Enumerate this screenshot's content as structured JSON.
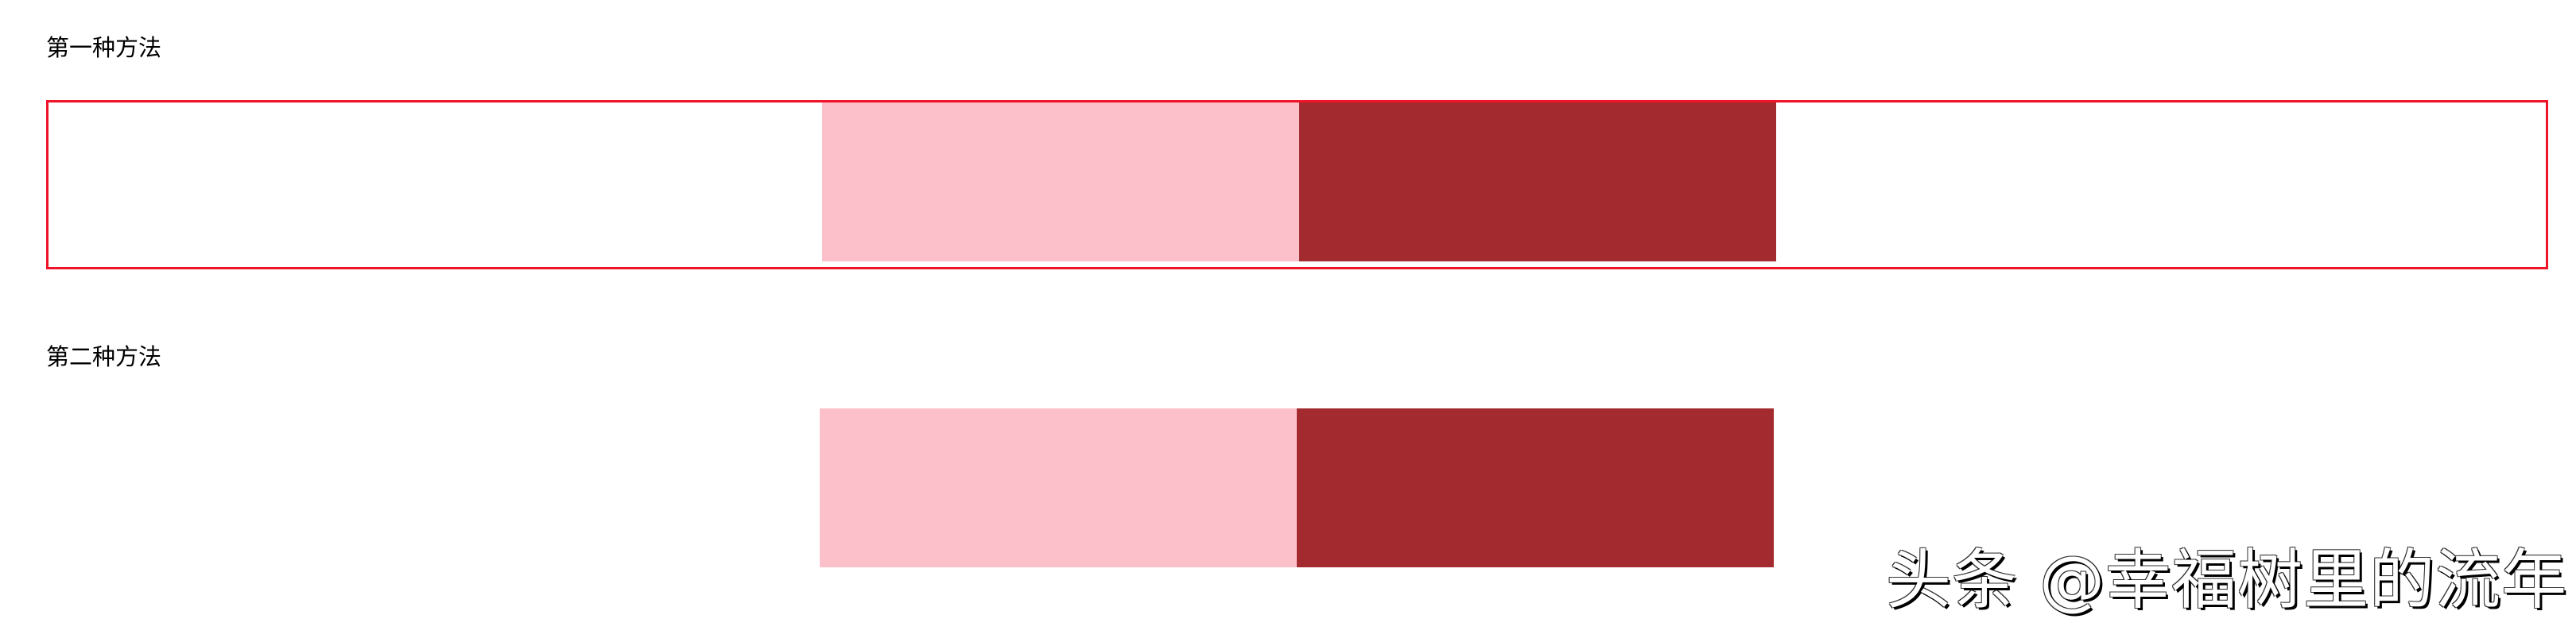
{
  "sections": [
    {
      "label": "第一种方法"
    },
    {
      "label": "第二种方法"
    }
  ],
  "colors": {
    "border": "#f0142a",
    "pink": "#fcc0cb",
    "dark_red": "#a32b2f"
  },
  "watermark": "头条 @幸福树里的流年"
}
